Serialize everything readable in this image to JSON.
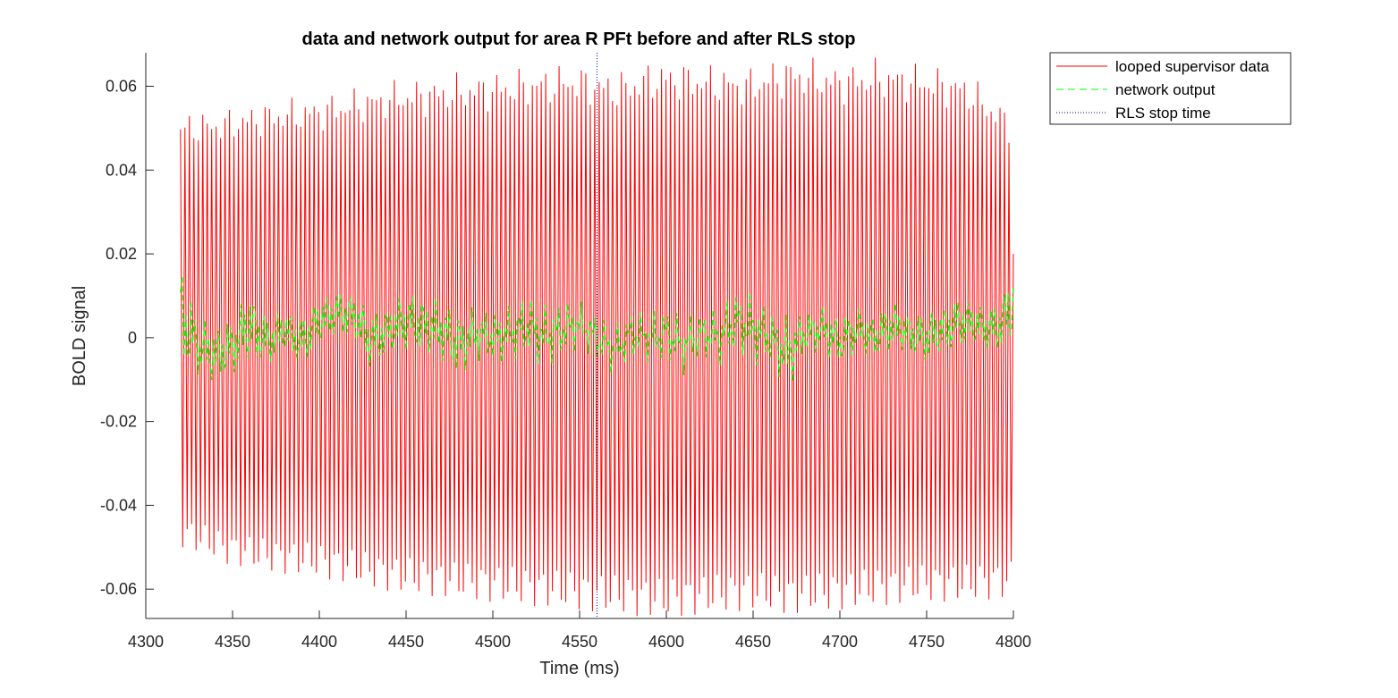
{
  "chart_data": {
    "type": "line",
    "title": "data and network output for area R PFt before and after RLS stop",
    "xlabel": "Time (ms)",
    "ylabel": "BOLD signal",
    "xlim": [
      4300,
      4800
    ],
    "ylim": [
      -0.067,
      0.068
    ],
    "xticks": [
      4300,
      4350,
      4400,
      4450,
      4500,
      4550,
      4600,
      4650,
      4700,
      4750,
      4800
    ],
    "xtick_labels": [
      "4300",
      "4350",
      "4400",
      "4450",
      "4500",
      "4550",
      "4600",
      "4650",
      "4700",
      "4750",
      "4800"
    ],
    "yticks": [
      0.06,
      0.04,
      0.02,
      0,
      -0.02,
      -0.04,
      -0.06
    ],
    "ytick_labels": [
      "0.06",
      "0.04",
      "0.02",
      "0",
      "-0.02",
      "-0.04",
      "-0.06"
    ],
    "grid": false,
    "legend_position": "outside-top-right",
    "series": [
      {
        "name": "looped supervisor data",
        "color": "#ff0000",
        "style": "solid",
        "x_range": [
          4320,
          4800
        ],
        "peaks": [
          0.054,
          0.055,
          0.057,
          0.058,
          0.06,
          0.062,
          0.063,
          0.064,
          0.065,
          0.066,
          0.064,
          0.067,
          0.066,
          0.065,
          0.068,
          0.066,
          0.067,
          0.066,
          0.064,
          0.055
        ],
        "troughs": [
          -0.05,
          -0.054,
          -0.056,
          -0.057,
          -0.059,
          -0.061,
          -0.062,
          -0.063,
          -0.064,
          -0.065,
          -0.066,
          -0.067,
          -0.066,
          -0.065,
          -0.066,
          -0.065,
          -0.064,
          -0.063,
          -0.063,
          -0.062
        ]
      },
      {
        "name": "network output",
        "color": "#00ff00",
        "style": "dashed",
        "x": [
          4320,
          4330,
          4340,
          4350,
          4360,
          4370,
          4380,
          4390,
          4400,
          4410,
          4420,
          4430,
          4440,
          4450,
          4460,
          4470,
          4480,
          4490,
          4500,
          4510,
          4520,
          4530,
          4540,
          4550,
          4560,
          4570,
          4580,
          4590,
          4600,
          4610,
          4620,
          4630,
          4640,
          4650,
          4660,
          4670,
          4680,
          4690,
          4700,
          4710,
          4720,
          4730,
          4740,
          4750,
          4760,
          4770,
          4780,
          4790,
          4800
        ],
        "center": [
          0.005,
          -0.002,
          -0.004,
          -0.002,
          0.003,
          -0.001,
          0.002,
          -0.001,
          0.004,
          0.006,
          0.005,
          -0.001,
          0.002,
          0.004,
          0.003,
          0.002,
          -0.002,
          0.001,
          0.0,
          0.001,
          0.003,
          0.0,
          0.002,
          0.003,
          0.0,
          -0.003,
          0.001,
          0.0,
          0.001,
          -0.002,
          0.001,
          0.0,
          0.004,
          0.002,
          0.0,
          -0.004,
          0.001,
          0.002,
          -0.001,
          0.002,
          0.0,
          0.003,
          0.001,
          0.0,
          0.002,
          0.004,
          0.003,
          0.002,
          0.008
        ],
        "amplitude": [
          0.015,
          0.008,
          0.008,
          0.008,
          0.01,
          0.007,
          0.006,
          0.007,
          0.007,
          0.006,
          0.007,
          0.008,
          0.007,
          0.008,
          0.008,
          0.008,
          0.009,
          0.007,
          0.007,
          0.007,
          0.008,
          0.008,
          0.007,
          0.006,
          0.006,
          0.006,
          0.006,
          0.006,
          0.007,
          0.007,
          0.006,
          0.007,
          0.008,
          0.009,
          0.007,
          0.01,
          0.006,
          0.006,
          0.007,
          0.006,
          0.006,
          0.007,
          0.006,
          0.007,
          0.007,
          0.007,
          0.006,
          0.007,
          0.01
        ]
      },
      {
        "name": "RLS stop time",
        "color": "#000080",
        "style": "dotted",
        "x": 4560
      }
    ]
  }
}
